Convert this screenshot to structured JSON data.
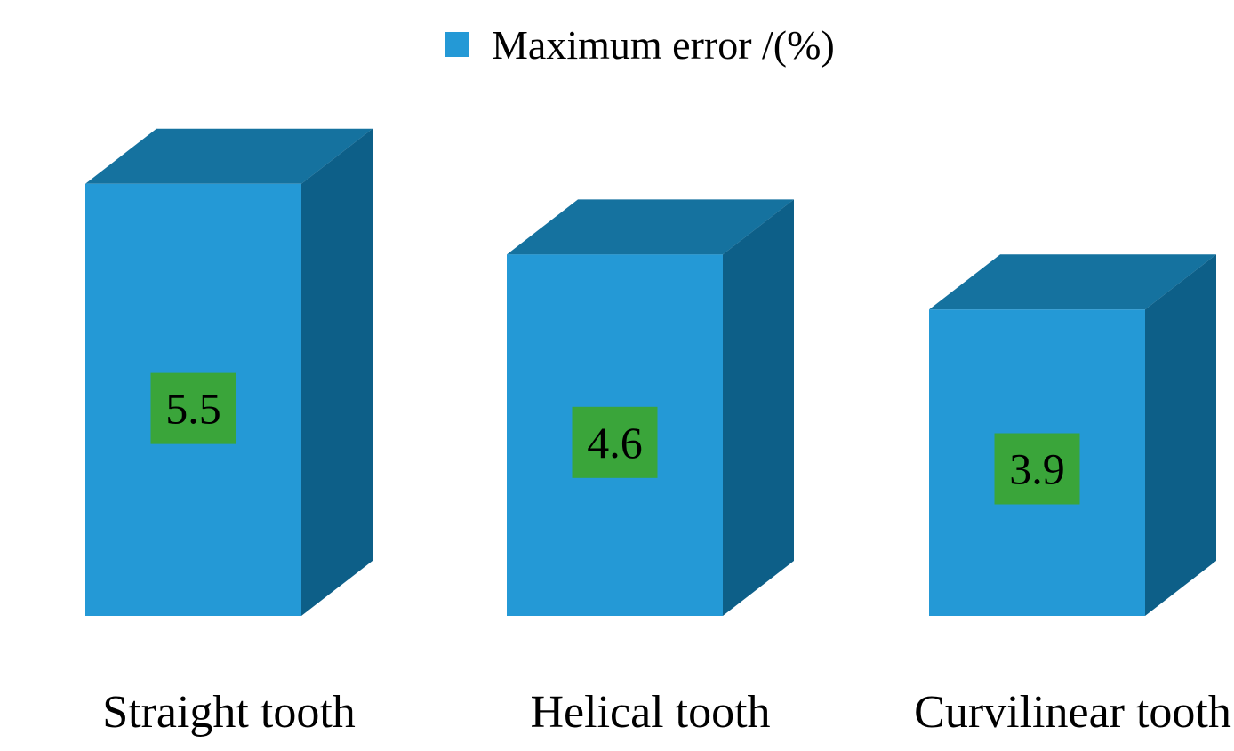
{
  "chart_data": {
    "type": "bar",
    "style": "3d",
    "categories": [
      "Straight tooth",
      "Helical tooth",
      "Curvilinear tooth"
    ],
    "series": [
      {
        "name": "Maximum error /(%)",
        "values": [
          5.5,
          4.6,
          3.9
        ],
        "color": "#2499d6"
      }
    ],
    "data_labels": [
      "5.5",
      "4.6",
      "3.9"
    ],
    "legend_position": "top-center",
    "grid": false,
    "colors": {
      "bar_front": "#2499d6",
      "bar_top": "#15729f",
      "bar_side": "#0d5f88",
      "label_box": "#3aa53a",
      "text": "#000000"
    }
  }
}
